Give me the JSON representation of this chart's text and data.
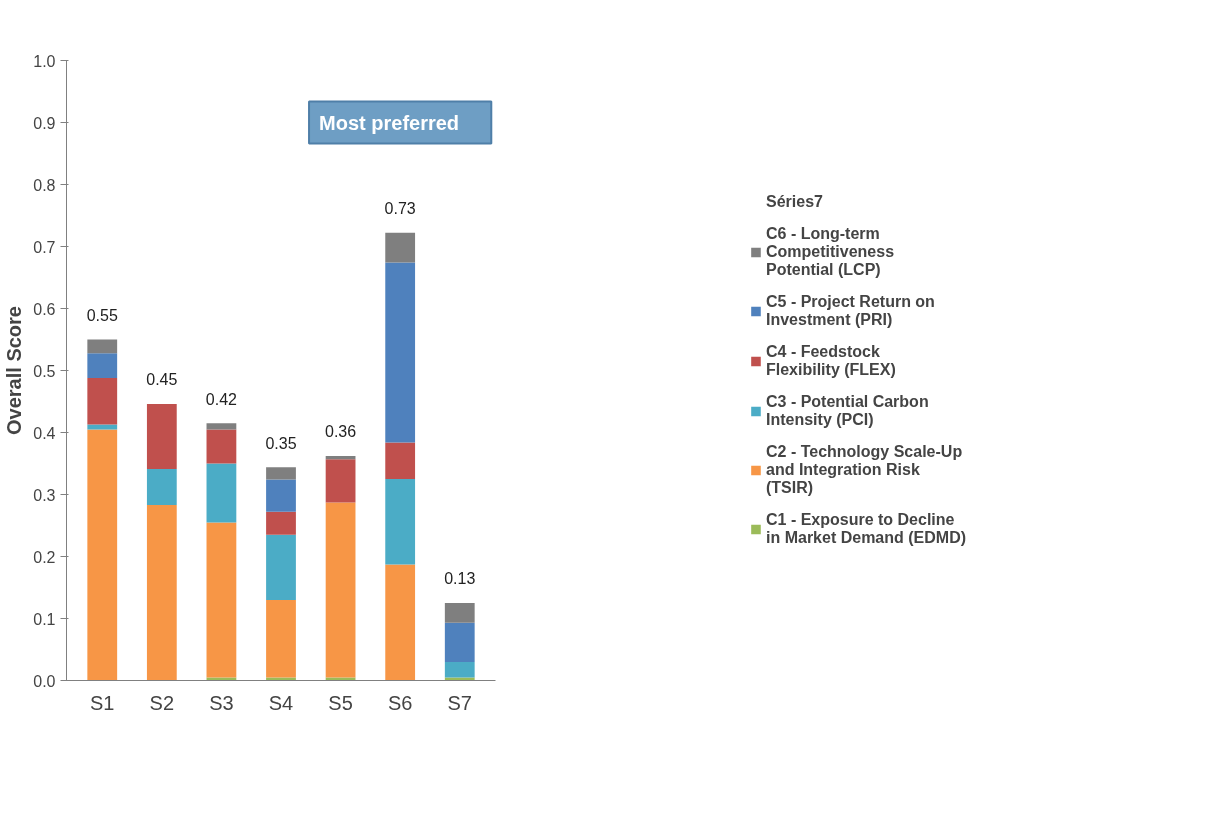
{
  "chart_data": {
    "type": "bar",
    "stacked": true,
    "ylabel": "Overall Score",
    "categories": [
      "S1",
      "S2",
      "S3",
      "S4",
      "S5",
      "S6",
      "S7"
    ],
    "series": [
      {
        "name": "C1 - Exposure to Decline in Market Demand (EDMD)",
        "color": "#9bbb59",
        "values": [
          0,
          0,
          0.005,
          0.005,
          0.005,
          0,
          0.005
        ]
      },
      {
        "name": "C2 - Technology Scale-Up and Integration Risk (TSIR)",
        "color": "#f79646",
        "values": [
          0.405,
          0.283,
          0.25,
          0.125,
          0.282,
          0.187,
          0
        ]
      },
      {
        "name": "C3 - Potential Carbon Intensity (PCI)",
        "color": "#4bacc6",
        "values": [
          0.008,
          0.058,
          0.095,
          0.105,
          0,
          0.138,
          0.025
        ]
      },
      {
        "name": "C4 - Feedstock Flexibility (FLEX)",
        "color": "#c0504d",
        "values": [
          0.075,
          0.105,
          0.055,
          0.037,
          0.07,
          0.059,
          0
        ]
      },
      {
        "name": "C5 - Project Return on Investment (PRI)",
        "color": "#4f81bd",
        "values": [
          0.04,
          0,
          0,
          0.052,
          0,
          0.29,
          0.063
        ]
      },
      {
        "name": "C6 - Long-term Competitiveness Potential (LCP)",
        "color": "#7f7f7f",
        "values": [
          0.022,
          0,
          0.01,
          0.02,
          0.005,
          0.048,
          0.032
        ]
      },
      {
        "name": "Séries7",
        "values": [
          null,
          null,
          null,
          null,
          null,
          null,
          null
        ]
      }
    ],
    "totals": [
      "0.55",
      "0.45",
      "0.42",
      "0.35",
      "0.36",
      "0.73",
      "0.13"
    ],
    "annotations": [
      "Most preferred"
    ],
    "ylim": [
      0,
      1.0
    ],
    "yticks": [
      {
        "value": 0,
        "label": "0.0"
      },
      0.1,
      0.2,
      0.3,
      0.4,
      0.5,
      0.6,
      0.7,
      0.8,
      0.9,
      {
        "value": 1,
        "label": "1.0"
      }
    ],
    "grid": false,
    "legend": "right"
  }
}
